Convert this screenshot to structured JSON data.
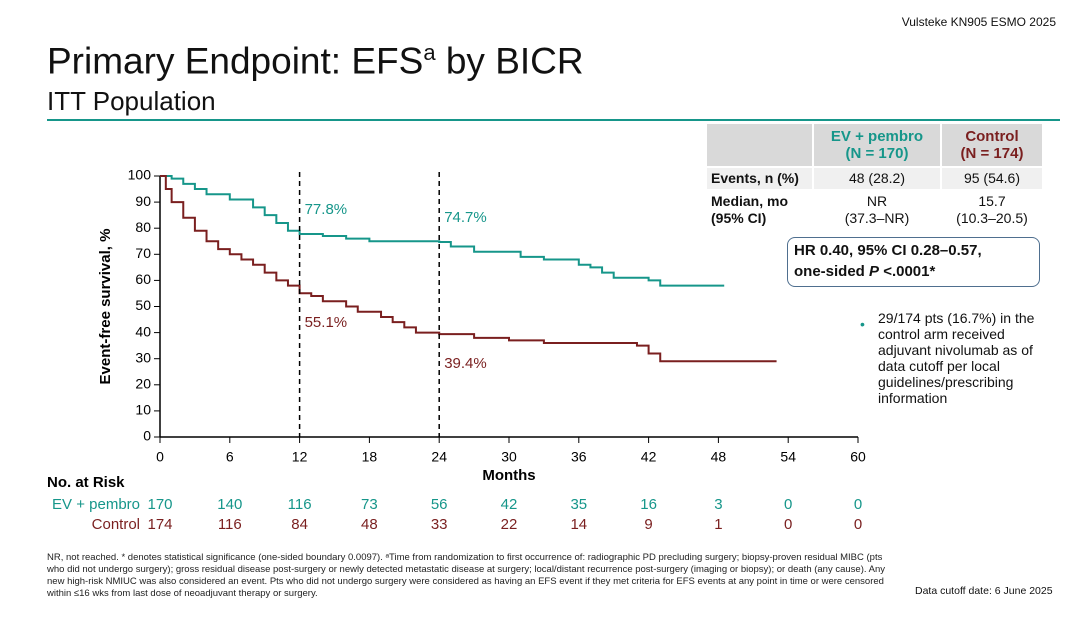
{
  "header": {
    "source": "Vulsteke KN905 ESMO 2025",
    "title": "Primary Endpoint: EFS",
    "title_sup": "a",
    "title_tail": " by BICR",
    "subtitle": "ITT Population"
  },
  "chart_data": {
    "type": "line",
    "step": true,
    "x_label": "Months",
    "y_label": "Event-free survival, %",
    "xlim": [
      0,
      60
    ],
    "xticks": [
      0,
      6,
      12,
      18,
      24,
      30,
      36,
      42,
      48,
      54,
      60
    ],
    "ylim": [
      0,
      100
    ],
    "yticks": [
      0,
      10,
      20,
      30,
      40,
      50,
      60,
      70,
      80,
      90,
      100
    ],
    "risk_title": "No. at Risk",
    "series": [
      {
        "name": "EV + pembro",
        "color": "#16968a",
        "x": [
          0,
          1,
          2,
          3,
          4,
          6,
          8,
          9,
          10,
          11,
          12,
          14,
          16,
          18,
          24,
          25,
          27,
          31,
          33,
          36,
          37,
          38,
          39,
          42,
          43,
          48.5
        ],
        "values": [
          100,
          99,
          97,
          95,
          93,
          91,
          88,
          85,
          82,
          79,
          77.8,
          77,
          76,
          75,
          74.7,
          73,
          71,
          69,
          68,
          66,
          65,
          63,
          61,
          60,
          58,
          58
        ],
        "at_risk": [
          170,
          140,
          116,
          73,
          56,
          42,
          35,
          16,
          3,
          0,
          0
        ]
      },
      {
        "name": "Control",
        "color": "#7a1f1f",
        "x": [
          0,
          0.5,
          1,
          2,
          3,
          4,
          5,
          6,
          7,
          8,
          9,
          10,
          11,
          12,
          13,
          14,
          16,
          17,
          19,
          20,
          21,
          22,
          24,
          27,
          30,
          33,
          41,
          42,
          43,
          53
        ],
        "values": [
          100,
          95,
          90,
          84,
          79,
          75,
          72,
          70,
          68,
          66,
          63,
          60,
          58,
          55.1,
          54,
          52,
          50,
          48,
          46,
          44,
          42,
          40,
          39.4,
          38,
          37,
          36,
          35,
          32,
          29,
          29
        ],
        "at_risk": [
          174,
          116,
          84,
          48,
          33,
          22,
          14,
          9,
          1,
          0,
          0
        ]
      }
    ],
    "landmarks": [
      {
        "series": 0,
        "month": 12,
        "value": 77.8,
        "label": "77.8%"
      },
      {
        "series": 0,
        "month": 24,
        "value": 74.7,
        "label": "74.7%"
      },
      {
        "series": 1,
        "month": 12,
        "value": 55.1,
        "label": "55.1%"
      },
      {
        "series": 1,
        "month": 24,
        "value": 39.4,
        "label": "39.4%"
      }
    ]
  },
  "summary_table": {
    "columns": [
      {
        "name": "EV + pembro",
        "n": "(N = 170)"
      },
      {
        "name": "Control",
        "n": "(N = 174)"
      }
    ],
    "rows": [
      {
        "label": [
          "Events, n (%)"
        ],
        "cells": [
          [
            "48 (28.2)"
          ],
          [
            "95 (54.6)"
          ]
        ]
      },
      {
        "label": [
          "Median, mo",
          "(95% CI)"
        ],
        "cells": [
          [
            "NR",
            "(37.3–NR)"
          ],
          [
            "15.7",
            "(10.3–20.5)"
          ]
        ]
      }
    ]
  },
  "hr_box": {
    "lead": "HR 0.40, 95% CI 0.28–0.57,",
    "line2": "one-sided ",
    "p": "P",
    "tail": " <.0001*"
  },
  "note": "29/174 pts (16.7%) in the control arm received adjuvant nivolumab as of data cutoff per local guidelines/prescribing information",
  "footnote": "NR, not reached. * denotes statistical significance (one-sided boundary 0.0097). ᵃTime from randomization to first occurrence of: radiographic PD precluding surgery; biopsy-proven residual MIBC (pts who did not undergo surgery); gross residual disease post-surgery or newly detected metastatic disease at surgery; local/distant recurrence post-surgery (imaging or biopsy); or death (any cause). Any new high-risk NMIUC was also considered an event. Pts who did not undergo surgery were considered as having an EFS event if they met criteria for EFS events at any point in time or were censored within ≤16 wks from last dose of neoadjuvant therapy or surgery.",
  "cutoff": "Data cutoff date: 6 June 2025"
}
